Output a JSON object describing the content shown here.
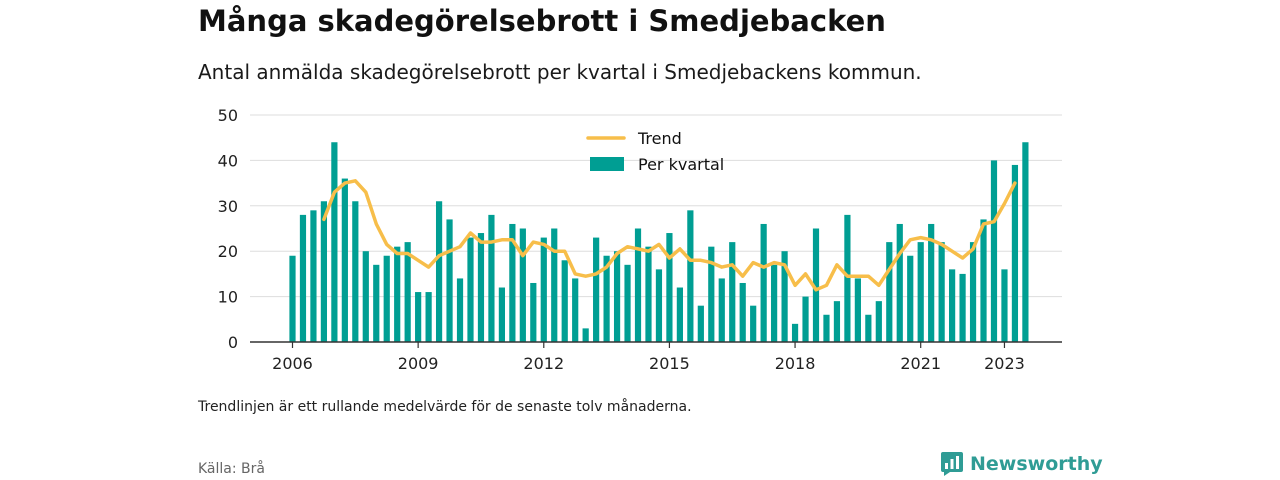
{
  "title": "Många skadegörelsebrott i Smedjebacken",
  "subtitle": "Antal anmälda skadegörelsebrott per kvartal i Smedjebackens kommun.",
  "footnote": "Trendlinjen är ett rullande medelvärde för de senaste tolv månaderna.",
  "source": "Källa: Brå",
  "brand": "Newsworthy",
  "colors": {
    "bar": "#009e93",
    "trend": "#f7be4a",
    "grid": "#dddddd",
    "axis": "#333333",
    "brand": "#2f9c95"
  },
  "chart_data": {
    "type": "bar",
    "x_start": "2006 Q1",
    "ylim": [
      0,
      50
    ],
    "yticks": [
      0,
      10,
      20,
      30,
      40,
      50
    ],
    "xticks": [
      "2006",
      "2009",
      "2012",
      "2015",
      "2018",
      "2021",
      "2023"
    ],
    "legend": {
      "position": "top-center",
      "items": [
        "Trend",
        "Per kvartal"
      ]
    },
    "grid": true,
    "series": [
      {
        "name": "Per kvartal",
        "type": "bar",
        "values": [
          19,
          28,
          29,
          31,
          44,
          36,
          31,
          20,
          17,
          19,
          21,
          22,
          11,
          11,
          31,
          27,
          14,
          23,
          24,
          28,
          12,
          26,
          25,
          13,
          23,
          25,
          18,
          14,
          3,
          23,
          19,
          20,
          17,
          25,
          21,
          16,
          24,
          12,
          29,
          8,
          21,
          14,
          22,
          13,
          8,
          26,
          17,
          20,
          4,
          10,
          25,
          6,
          9,
          28,
          14,
          6,
          9,
          22,
          26,
          19,
          22,
          26,
          22,
          16,
          15,
          22,
          27,
          40,
          16,
          39,
          44
        ]
      },
      {
        "name": "Trend",
        "type": "line",
        "start_index": 3,
        "values": [
          27,
          33,
          35,
          35.5,
          33,
          26,
          21.5,
          19.5,
          19.5,
          18,
          16.5,
          19,
          20,
          21,
          24,
          22,
          22,
          22.5,
          22.5,
          19,
          22,
          21.5,
          20,
          20,
          15,
          14.5,
          15,
          16.5,
          19.5,
          21,
          20.5,
          20,
          21.5,
          18.5,
          20.5,
          18,
          18,
          17.5,
          16.5,
          17,
          14.5,
          17.5,
          16.5,
          17.5,
          17,
          12.5,
          15,
          11.5,
          12.5,
          17,
          14.5,
          14.5,
          14.5,
          12.5,
          16,
          19.5,
          22.5,
          23,
          22.5,
          21.5,
          20,
          18.5,
          20.5,
          26,
          26.5,
          30.5,
          35
        ]
      }
    ]
  }
}
